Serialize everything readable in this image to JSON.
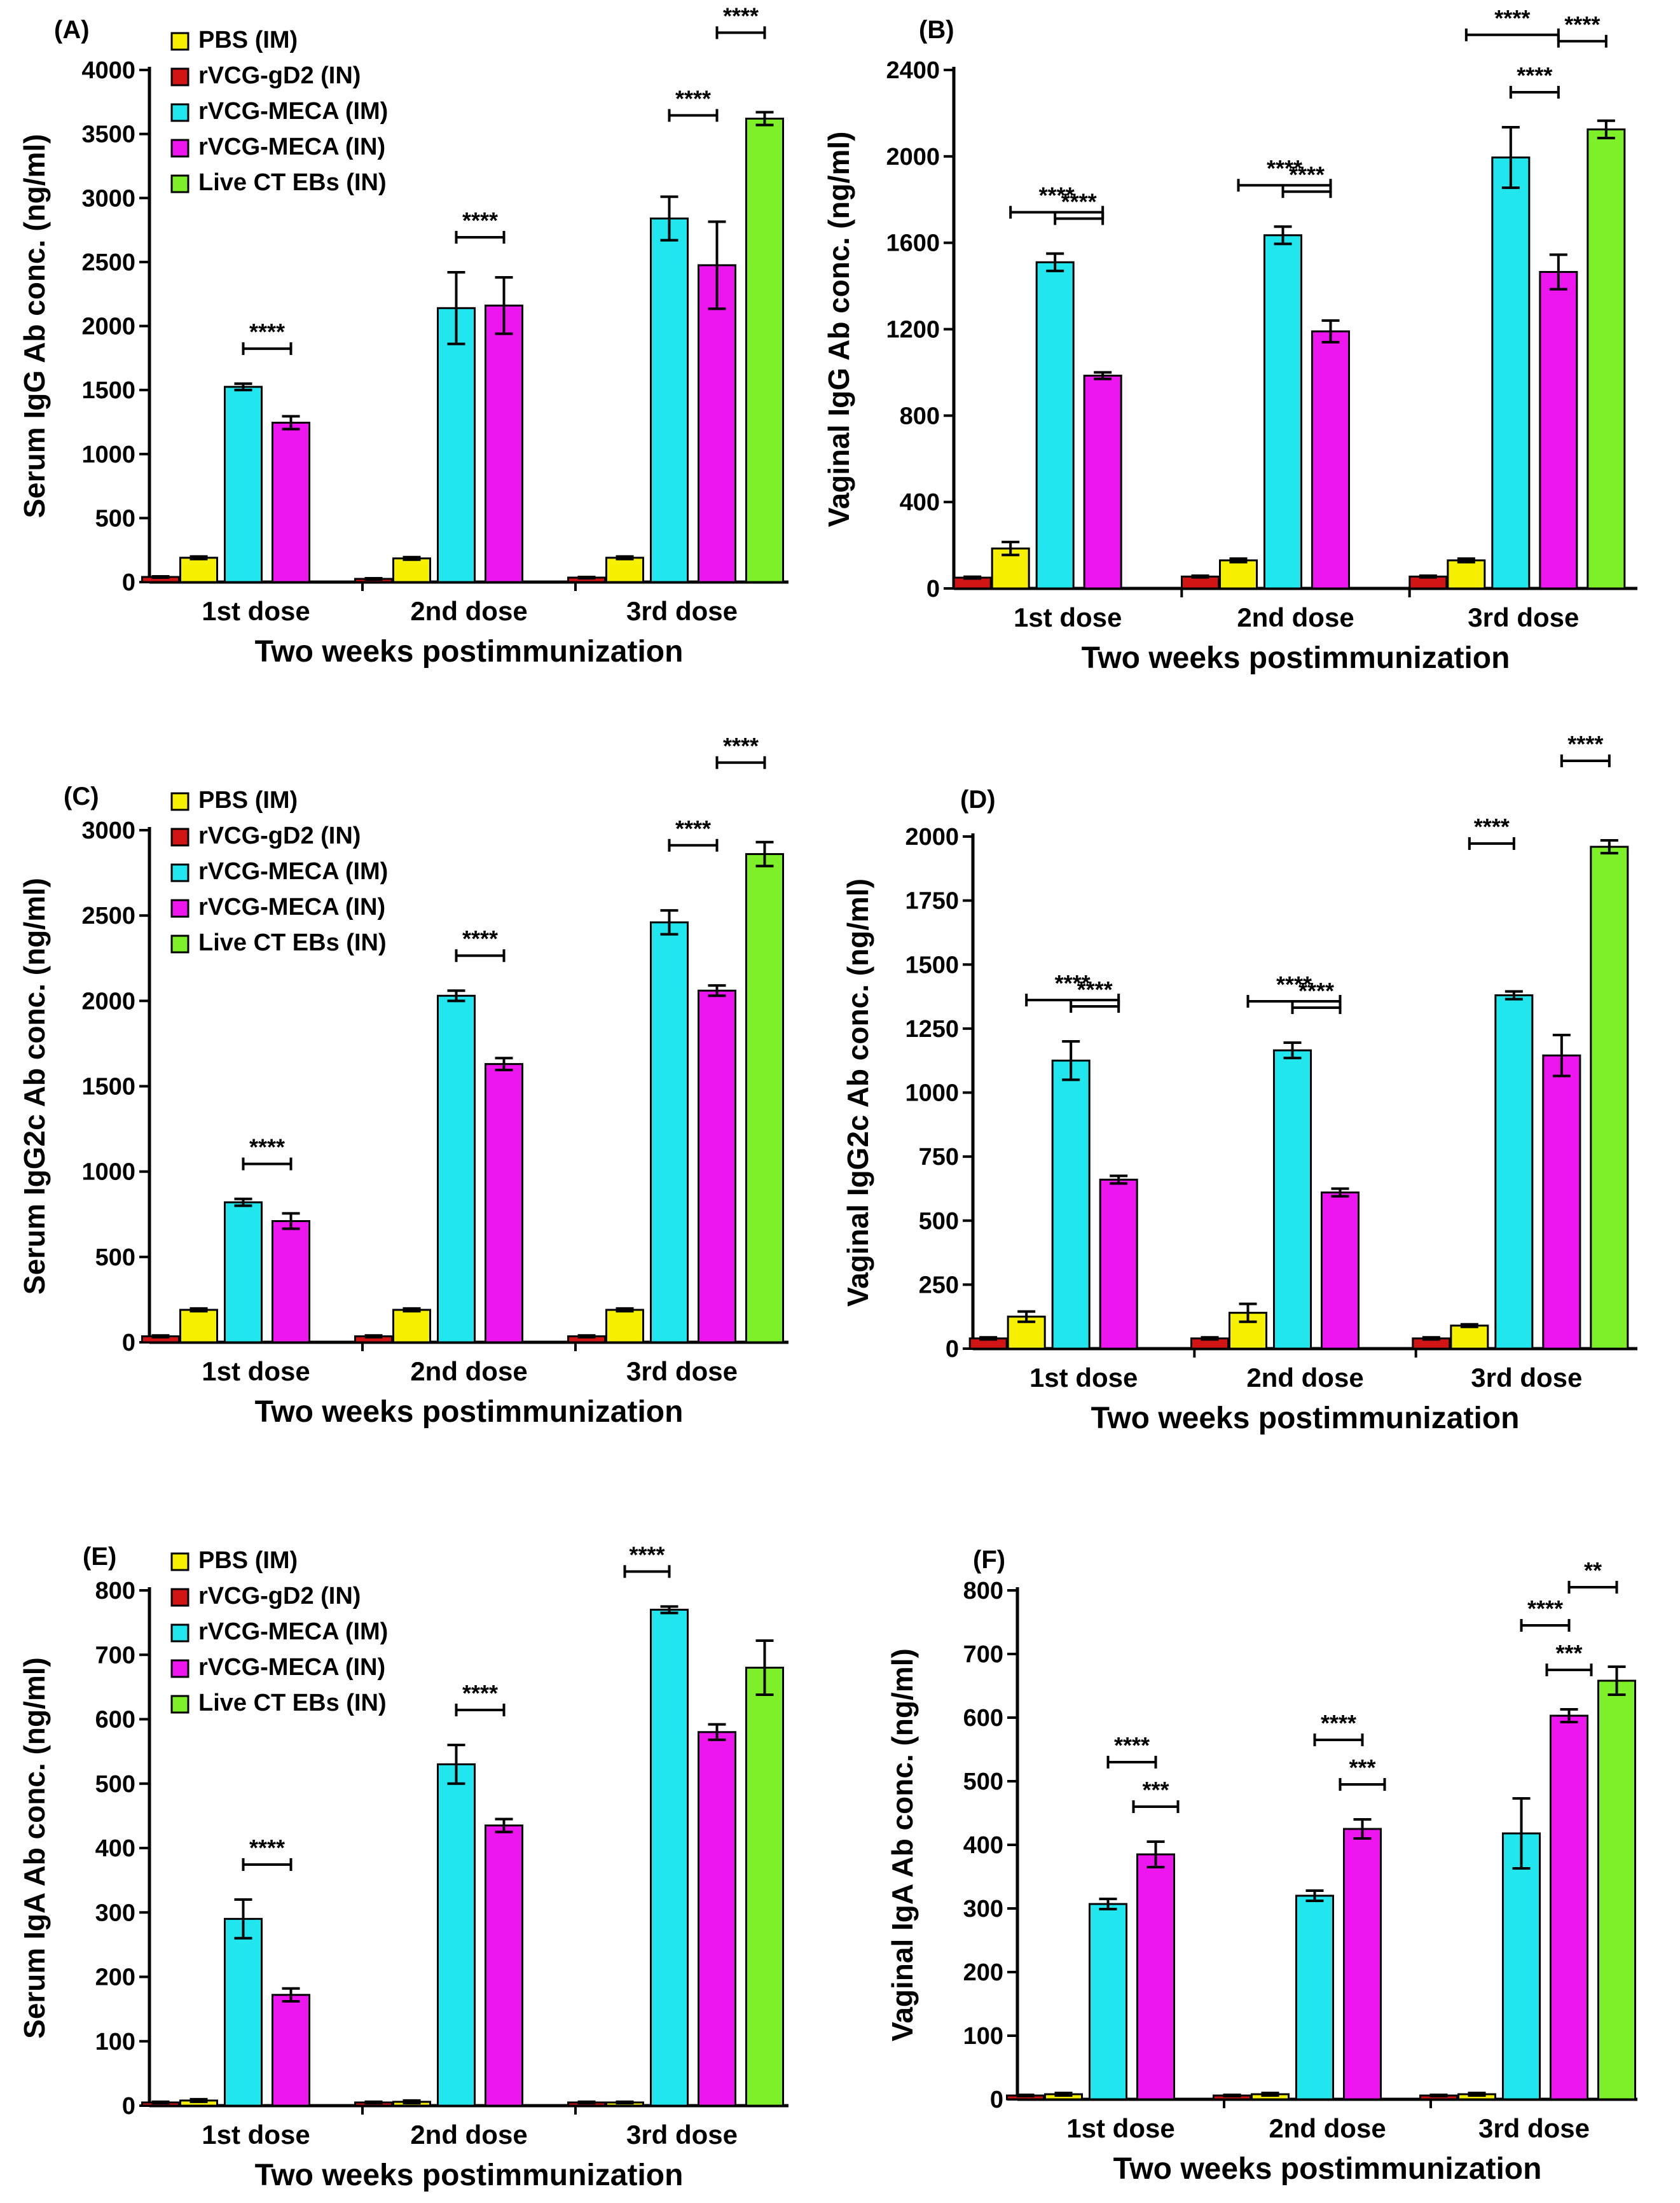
{
  "colors": {
    "PBS (IM)": "#f4f000",
    "rVCG-gD2 (IN)": "#d11414",
    "rVCG-MECA (IM)": "#22e6ee",
    "rVCG-MECA (IN)": "#ee16ee",
    "Live CT EBs (IN)": "#7ef02a",
    "axis": "#000000"
  },
  "chart_data": [
    {
      "type": "bar",
      "panel_label": "(A)",
      "ylabel": "Serum IgG Ab conc. (ng/ml)",
      "xlabel": "Two weeks postimmunization",
      "categories": [
        "1st dose",
        "2nd dose",
        "3rd dose"
      ],
      "ylim": [
        0,
        4000
      ],
      "yticks": [
        0,
        500,
        1000,
        1500,
        2000,
        2500,
        3000,
        3500,
        4000
      ],
      "legend": true,
      "legend_position": "top-left",
      "series": [
        {
          "name": "rVCG-gD2 (IN)",
          "values": [
            40,
            25,
            35
          ],
          "errors": [
            5,
            5,
            5
          ]
        },
        {
          "name": "PBS (IM)",
          "values": [
            190,
            185,
            190
          ],
          "errors": [
            10,
            10,
            10
          ]
        },
        {
          "name": "rVCG-MECA (IM)",
          "values": [
            1525,
            2140,
            2840
          ],
          "errors": [
            25,
            280,
            170
          ]
        },
        {
          "name": "rVCG-MECA (IN)",
          "values": [
            1245,
            2160,
            2475
          ],
          "errors": [
            50,
            220,
            340
          ]
        },
        {
          "name": "Live CT EBs (IN)",
          "values": [
            null,
            null,
            3620
          ],
          "errors": [
            null,
            null,
            50
          ]
        }
      ],
      "significance": [
        {
          "group": 0,
          "from": 2,
          "to": 3,
          "label": "****",
          "level": 0
        },
        {
          "group": 1,
          "from": 2,
          "to": 3,
          "label": "****",
          "level": 0
        },
        {
          "group": 2,
          "from": 2,
          "to": 3,
          "label": "****",
          "level": 0
        },
        {
          "group": 2,
          "from": 3,
          "to": 4,
          "label": "****",
          "level": 1
        }
      ]
    },
    {
      "type": "bar",
      "panel_label": "(B)",
      "ylabel": "Vaginal IgG Ab conc. (ng/ml)",
      "xlabel": "Two weeks postimmunization",
      "categories": [
        "1st dose",
        "2nd dose",
        "3rd dose"
      ],
      "ylim": [
        0,
        2400
      ],
      "yticks": [
        0,
        400,
        800,
        1200,
        1600,
        2000,
        2400
      ],
      "legend": false,
      "series": [
        {
          "name": "rVCG-gD2 (IN)",
          "values": [
            50,
            55,
            55
          ],
          "errors": [
            4,
            4,
            4
          ]
        },
        {
          "name": "PBS (IM)",
          "values": [
            185,
            130,
            130
          ],
          "errors": [
            30,
            8,
            8
          ]
        },
        {
          "name": "rVCG-MECA (IM)",
          "values": [
            1510,
            1635,
            1995
          ],
          "errors": [
            40,
            40,
            140
          ]
        },
        {
          "name": "rVCG-MECA (IN)",
          "values": [
            985,
            1190,
            1465
          ],
          "errors": [
            15,
            50,
            80
          ]
        },
        {
          "name": "Live CT EBs (IN)",
          "values": [
            null,
            null,
            2125
          ],
          "errors": [
            null,
            null,
            40
          ]
        }
      ],
      "significance": [
        {
          "group": 0,
          "from": 2,
          "to": 3,
          "label": "****",
          "level": 0
        },
        {
          "group": 0,
          "from": 1,
          "to": 3,
          "label": "****",
          "level": 1
        },
        {
          "group": 1,
          "from": 2,
          "to": 3,
          "label": "****",
          "level": 0
        },
        {
          "group": 1,
          "from": 1,
          "to": 3,
          "label": "****",
          "level": 1
        },
        {
          "group": 2,
          "from": 2,
          "to": 3,
          "label": "****",
          "level": 0
        },
        {
          "group": 2,
          "from": 3,
          "to": 4,
          "label": "****",
          "level": 1
        },
        {
          "group": 2,
          "from": 1,
          "to": 3,
          "label": "****",
          "level": 2
        }
      ]
    },
    {
      "type": "bar",
      "panel_label": "(C)",
      "ylabel": "Serum IgG2c Ab conc. (ng/ml)",
      "xlabel": "Two weeks postimmunization",
      "categories": [
        "1st dose",
        "2nd dose",
        "3rd dose"
      ],
      "ylim": [
        0,
        3000
      ],
      "yticks": [
        0,
        500,
        1000,
        1500,
        2000,
        2500,
        3000
      ],
      "legend": true,
      "legend_position": "top-left",
      "series": [
        {
          "name": "rVCG-gD2 (IN)",
          "values": [
            35,
            35,
            35
          ],
          "errors": [
            5,
            5,
            5
          ]
        },
        {
          "name": "PBS (IM)",
          "values": [
            190,
            190,
            190
          ],
          "errors": [
            8,
            8,
            8
          ]
        },
        {
          "name": "rVCG-MECA (IM)",
          "values": [
            820,
            2030,
            2460
          ],
          "errors": [
            20,
            30,
            70
          ]
        },
        {
          "name": "rVCG-MECA (IN)",
          "values": [
            710,
            1630,
            2060
          ],
          "errors": [
            45,
            35,
            30
          ]
        },
        {
          "name": "Live CT EBs (IN)",
          "values": [
            null,
            null,
            2860
          ],
          "errors": [
            null,
            null,
            70
          ]
        }
      ],
      "significance": [
        {
          "group": 0,
          "from": 2,
          "to": 3,
          "label": "****",
          "level": 0
        },
        {
          "group": 1,
          "from": 2,
          "to": 3,
          "label": "****",
          "level": 0
        },
        {
          "group": 2,
          "from": 2,
          "to": 3,
          "label": "****",
          "level": 0
        },
        {
          "group": 2,
          "from": 3,
          "to": 4,
          "label": "****",
          "level": 1
        }
      ]
    },
    {
      "type": "bar",
      "panel_label": "(D)",
      "ylabel": "Vaginal IgG2c Ab conc. (ng/ml)",
      "xlabel": "Two weeks postimmunization",
      "categories": [
        "1st dose",
        "2nd dose",
        "3rd dose"
      ],
      "ylim": [
        0,
        2000
      ],
      "yticks": [
        0,
        250,
        500,
        750,
        1000,
        1250,
        1500,
        1750,
        2000
      ],
      "legend": false,
      "series": [
        {
          "name": "rVCG-gD2 (IN)",
          "values": [
            40,
            40,
            40
          ],
          "errors": [
            4,
            4,
            4
          ]
        },
        {
          "name": "PBS (IM)",
          "values": [
            125,
            140,
            90
          ],
          "errors": [
            20,
            35,
            5
          ]
        },
        {
          "name": "rVCG-MECA (IM)",
          "values": [
            1125,
            1165,
            1380
          ],
          "errors": [
            75,
            30,
            15
          ]
        },
        {
          "name": "rVCG-MECA (IN)",
          "values": [
            660,
            610,
            1145
          ],
          "errors": [
            15,
            15,
            80
          ]
        },
        {
          "name": "Live CT EBs (IN)",
          "values": [
            null,
            null,
            1960
          ],
          "errors": [
            null,
            null,
            25
          ]
        }
      ],
      "significance": [
        {
          "group": 0,
          "from": 2,
          "to": 3,
          "label": "****",
          "level": 0
        },
        {
          "group": 0,
          "from": 1,
          "to": 3,
          "label": "****",
          "level": 1
        },
        {
          "group": 1,
          "from": 2,
          "to": 3,
          "label": "****",
          "level": 0
        },
        {
          "group": 1,
          "from": 1,
          "to": 3,
          "label": "****",
          "level": 1
        },
        {
          "group": 2,
          "from": 1,
          "to": 2,
          "label": "****",
          "level": 0
        },
        {
          "group": 2,
          "from": 3,
          "to": 4,
          "label": "****",
          "level": 1
        }
      ]
    },
    {
      "type": "bar",
      "panel_label": "(E)",
      "ylabel": "Serum IgA Ab conc. (ng/ml)",
      "xlabel": "Two weeks postimmunization",
      "categories": [
        "1st dose",
        "2nd dose",
        "3rd dose"
      ],
      "ylim": [
        0,
        800
      ],
      "yticks": [
        0,
        100,
        200,
        300,
        400,
        500,
        600,
        700,
        800
      ],
      "legend": true,
      "legend_position": "top-left",
      "series": [
        {
          "name": "rVCG-gD2 (IN)",
          "values": [
            5,
            5,
            5
          ],
          "errors": [
            1,
            1,
            1
          ]
        },
        {
          "name": "PBS (IM)",
          "values": [
            8,
            6,
            5
          ],
          "errors": [
            2,
            2,
            1
          ]
        },
        {
          "name": "rVCG-MECA (IM)",
          "values": [
            290,
            530,
            770
          ],
          "errors": [
            30,
            30,
            5
          ]
        },
        {
          "name": "rVCG-MECA (IN)",
          "values": [
            172,
            435,
            580
          ],
          "errors": [
            10,
            10,
            12
          ]
        },
        {
          "name": "Live CT EBs (IN)",
          "values": [
            null,
            null,
            680
          ],
          "errors": [
            null,
            null,
            42
          ]
        }
      ],
      "significance": [
        {
          "group": 0,
          "from": 2,
          "to": 3,
          "label": "****",
          "level": 0
        },
        {
          "group": 1,
          "from": 2,
          "to": 3,
          "label": "****",
          "level": 0
        },
        {
          "group": 2,
          "from": 1,
          "to": 2,
          "label": "****",
          "level": 0
        }
      ]
    },
    {
      "type": "bar",
      "panel_label": "(F)",
      "ylabel": "Vaginal IgA Ab conc. (ng/ml)",
      "xlabel": "Two weeks postimmunization",
      "categories": [
        "1st dose",
        "2nd dose",
        "3rd dose"
      ],
      "ylim": [
        0,
        800
      ],
      "yticks": [
        0,
        100,
        200,
        300,
        400,
        500,
        600,
        700,
        800
      ],
      "legend": false,
      "series": [
        {
          "name": "rVCG-gD2 (IN)",
          "values": [
            6,
            6,
            6
          ],
          "errors": [
            1,
            1,
            1
          ]
        },
        {
          "name": "PBS (IM)",
          "values": [
            8,
            8,
            8
          ],
          "errors": [
            2,
            2,
            2
          ]
        },
        {
          "name": "rVCG-MECA (IM)",
          "values": [
            307,
            320,
            418
          ],
          "errors": [
            8,
            8,
            55
          ]
        },
        {
          "name": "rVCG-MECA (IN)",
          "values": [
            385,
            425,
            603
          ],
          "errors": [
            20,
            15,
            10
          ]
        },
        {
          "name": "Live CT EBs (IN)",
          "values": [
            null,
            null,
            658
          ],
          "errors": [
            null,
            null,
            22
          ]
        }
      ],
      "significance": [
        {
          "group": 0,
          "from": 3,
          "to": 3,
          "label": "***",
          "level": 0
        },
        {
          "group": 0,
          "from": 2,
          "to": 3,
          "label": "****",
          "level": 1
        },
        {
          "group": 1,
          "from": 3,
          "to": 3,
          "label": "***",
          "level": 0
        },
        {
          "group": 1,
          "from": 2,
          "to": 3,
          "label": "****",
          "level": 1
        },
        {
          "group": 2,
          "from": 3,
          "to": 3,
          "label": "***",
          "level": 0
        },
        {
          "group": 2,
          "from": 2,
          "to": 3,
          "label": "****",
          "level": 1
        },
        {
          "group": 2,
          "from": 3,
          "to": 4,
          "label": "**",
          "level": 1
        }
      ]
    }
  ]
}
